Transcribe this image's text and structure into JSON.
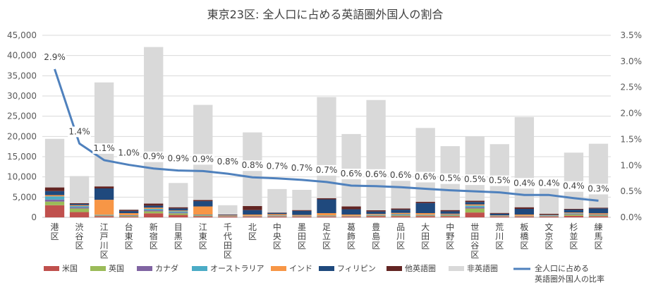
{
  "chart_data": {
    "type": "bar",
    "title": "東京23区: 全人口に占める英語圏外国人の割合",
    "categories": [
      "港区",
      "渋谷区",
      "江戸川区",
      "台東区",
      "新宿区",
      "目黒区",
      "江東区",
      "千代田区",
      "北区",
      "中央区",
      "墨田区",
      "足立区",
      "葛飾区",
      "豊島区",
      "品川区",
      "大田区",
      "中野区",
      "世田谷区",
      "荒川区",
      "板橋区",
      "文京区",
      "杉並区",
      "練馬区"
    ],
    "ylim": [
      0,
      45000
    ],
    "y2lim": [
      0,
      0.035
    ],
    "yticks": [
      "0",
      "5,000",
      "10,000",
      "15,000",
      "20,000",
      "25,000",
      "30,000",
      "35,000",
      "40,000",
      "45,000"
    ],
    "y2ticks": [
      "0.0%",
      "0.5%",
      "1.0%",
      "1.5%",
      "2.0%",
      "2.5%",
      "3.0%",
      "3.5%"
    ],
    "grid": true,
    "legend_position": "bottom",
    "series": [
      {
        "name": "米国",
        "color": "#c0504d",
        "values": [
          3000,
          1300,
          300,
          200,
          1000,
          600,
          300,
          200,
          200,
          200,
          200,
          200,
          200,
          300,
          300,
          300,
          300,
          1200,
          200,
          200,
          200,
          400,
          300
        ]
      },
      {
        "name": "英国",
        "color": "#9bbb59",
        "values": [
          900,
          900,
          150,
          150,
          500,
          400,
          200,
          100,
          100,
          100,
          100,
          100,
          100,
          150,
          200,
          150,
          200,
          1000,
          100,
          100,
          100,
          300,
          200
        ]
      },
      {
        "name": "カナダ",
        "color": "#8064a2",
        "values": [
          500,
          300,
          100,
          100,
          300,
          200,
          100,
          50,
          50,
          100,
          50,
          50,
          50,
          100,
          100,
          100,
          100,
          300,
          50,
          50,
          100,
          150,
          100
        ]
      },
      {
        "name": "オーストラリア",
        "color": "#4bacc6",
        "values": [
          800,
          300,
          100,
          100,
          300,
          300,
          100,
          50,
          50,
          100,
          50,
          100,
          50,
          100,
          200,
          100,
          100,
          400,
          50,
          50,
          100,
          150,
          100
        ]
      },
      {
        "name": "インド",
        "color": "#f79646",
        "values": [
          300,
          200,
          3700,
          500,
          300,
          200,
          2000,
          100,
          300,
          300,
          200,
          600,
          300,
          200,
          300,
          400,
          200,
          300,
          100,
          300,
          100,
          200,
          300
        ]
      },
      {
        "name": "フィリピン",
        "color": "#1f497d",
        "values": [
          1000,
          300,
          2800,
          500,
          500,
          500,
          1300,
          100,
          1100,
          300,
          1000,
          3400,
          1300,
          600,
          800,
          2500,
          600,
          600,
          400,
          1400,
          100,
          700,
          1200
        ]
      },
      {
        "name": "他英語圏",
        "color": "#632523",
        "values": [
          900,
          200,
          500,
          300,
          500,
          300,
          300,
          100,
          1000,
          100,
          200,
          300,
          700,
          300,
          300,
          300,
          300,
          300,
          200,
          400,
          200,
          200,
          200
        ]
      },
      {
        "name": "非英語圏",
        "color": "#d9d9d9",
        "values": [
          12000,
          6700,
          25700,
          200,
          38700,
          6000,
          23500,
          2300,
          18200,
          5800,
          5000,
          25000,
          17900,
          27250,
          9300,
          18250,
          15800,
          15900,
          17000,
          22300,
          8500,
          13900,
          15800
        ]
      },
      {
        "name": "全人口に占める英語圏外国人の比率",
        "color": "#4f81bd",
        "axis": "right",
        "values": [
          0.029,
          0.014,
          0.011,
          0.01,
          0.009,
          0.009,
          0.009,
          0.008,
          0.008,
          0.007,
          0.007,
          0.007,
          0.006,
          0.006,
          0.006,
          0.006,
          0.005,
          0.005,
          0.005,
          0.004,
          0.004,
          0.004,
          0.003
        ]
      }
    ],
    "line_values_exact": [
      0.0285,
      0.0142,
      0.011,
      0.0101,
      0.0094,
      0.009,
      0.0089,
      0.0084,
      0.0077,
      0.0075,
      0.0072,
      0.0068,
      0.0061,
      0.006,
      0.0058,
      0.0055,
      0.0052,
      0.005,
      0.0048,
      0.0043,
      0.0043,
      0.0037,
      0.0032
    ],
    "line_labels": [
      "2.9%",
      "1.4%",
      "1.1%",
      "1.0%",
      "0.9%",
      "0.9%",
      "0.9%",
      "0.8%",
      "0.8%",
      "0.7%",
      "0.7%",
      "0.7%",
      "0.6%",
      "0.6%",
      "0.6%",
      "0.6%",
      "0.5%",
      "0.5%",
      "0.5%",
      "0.4%",
      "0.4%",
      "0.4%",
      "0.3%"
    ],
    "legend": [
      {
        "label": "米国",
        "color": "#c0504d",
        "kind": "box"
      },
      {
        "label": "英国",
        "color": "#9bbb59",
        "kind": "box"
      },
      {
        "label": "カナダ",
        "color": "#8064a2",
        "kind": "box"
      },
      {
        "label": "オーストラリア",
        "color": "#4bacc6",
        "kind": "box"
      },
      {
        "label": "インド",
        "color": "#f79646",
        "kind": "box"
      },
      {
        "label": "フィリピン",
        "color": "#1f497d",
        "kind": "box"
      },
      {
        "label": "他英語圏",
        "color": "#632523",
        "kind": "box"
      },
      {
        "label": "非英語圏",
        "color": "#d9d9d9",
        "kind": "box"
      },
      {
        "label": "全人口に占める",
        "label2": "英語圏外国人の比率",
        "color": "#4f81bd",
        "kind": "line"
      }
    ]
  }
}
